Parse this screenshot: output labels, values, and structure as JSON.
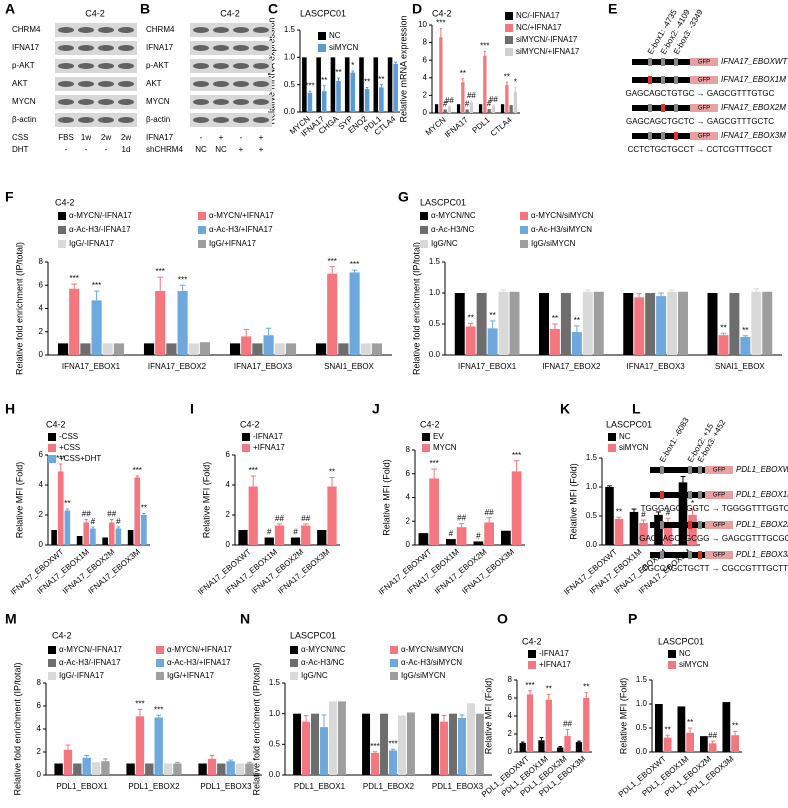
{
  "chart_data": [
    {
      "type": "bar",
      "panel": "C",
      "title": "LASCPC01",
      "ylabel": "Relative mRNA expression",
      "categories": [
        "MYCN",
        "IFNA17",
        "CHGA",
        "SYP",
        "ENO2",
        "PDL1",
        "CTLA4"
      ],
      "series": [
        {
          "name": "NC",
          "color": "#000000",
          "values": [
            1,
            1,
            1,
            1,
            1,
            1,
            1
          ]
        },
        {
          "name": "siMYCN",
          "color": "#5b9bd5",
          "values": [
            0.35,
            0.38,
            0.57,
            0.72,
            0.42,
            0.45,
            0.88
          ],
          "errors": [
            0.03,
            0.1,
            0.05,
            0.03,
            0.03,
            0.05,
            0.03
          ],
          "significance": [
            "***",
            "**",
            "**",
            "*",
            "**",
            "**",
            null
          ]
        }
      ],
      "ylim": [
        0,
        1.5
      ],
      "yticks": [
        {
          "value": 0,
          "label": "0.0"
        },
        0.5,
        {
          "value": 1,
          "label": "1.0"
        },
        1.5
      ]
    },
    {
      "type": "bar",
      "panel": "D",
      "title": "C4-2",
      "ylabel": "Relative mRNA expression",
      "categories": [
        "MYCN",
        "IFNA17",
        "PDL1",
        "CTLA4"
      ],
      "series": [
        {
          "name": "NC/-IFNA17",
          "color": "#000000",
          "values": [
            1,
            1,
            1,
            1
          ]
        },
        {
          "name": "NC/+IFNA17",
          "color": "#f4777f",
          "values": [
            8.6,
            3.5,
            6.5,
            3.2
          ],
          "errors": [
            1.0,
            0.4,
            0.5,
            0.3
          ],
          "significance": [
            "***",
            "**",
            "***",
            "**"
          ]
        },
        {
          "name": "siMYCN/-IFNA17",
          "color": "#6d6d6d",
          "values": [
            0.4,
            0.4,
            0.45,
            0.9
          ],
          "significance": [
            "#",
            "#",
            "#",
            null
          ]
        },
        {
          "name": "siMYCN/+IFNA17",
          "color": "#d0d0d0",
          "values": [
            0.7,
            1.2,
            0.8,
            2.4
          ],
          "errors": [
            0.1,
            0.2,
            0.1,
            0.5
          ],
          "significance": [
            "##",
            "##",
            "##",
            "*"
          ]
        }
      ],
      "ylim": [
        0,
        10
      ],
      "yticks": [
        0,
        2,
        4,
        6,
        8,
        10
      ]
    },
    {
      "type": "bar",
      "panel": "F",
      "title": "C4-2",
      "ylabel": "Relative fold enrichment (IP/total)",
      "categories": [
        "IFNA17_EBOX1",
        "IFNA17_EBOX2",
        "IFNA17_EBOX3",
        "SNAI1_EBOX"
      ],
      "series": [
        {
          "name": "α-MYCN/-IFNA17",
          "color": "#000000",
          "values": [
            1,
            1,
            1,
            1
          ]
        },
        {
          "name": "α-MYCN/+IFNA17",
          "color": "#f4777f",
          "values": [
            5.7,
            5.5,
            1.6,
            7.0
          ],
          "errors": [
            0.4,
            1.2,
            0.6,
            0.6
          ],
          "significance": [
            "***",
            "***",
            null,
            "***"
          ]
        },
        {
          "name": "α-Ac-H3/-IFNA17",
          "color": "#6d6d6d",
          "values": [
            1,
            1,
            1,
            1
          ]
        },
        {
          "name": "α-Ac-H3/+IFNA17",
          "color": "#6fa8dc",
          "values": [
            4.7,
            5.5,
            1.7,
            7.1
          ],
          "errors": [
            0.8,
            0.5,
            0.6,
            0.2
          ],
          "significance": [
            "***",
            "***",
            null,
            "***"
          ]
        },
        {
          "name": "IgG/-IFNA17",
          "color": "#d9d9d9",
          "values": [
            1,
            1,
            1,
            1
          ]
        },
        {
          "name": "IgG/+IFNA17",
          "color": "#9e9e9e",
          "values": [
            1,
            1.1,
            1,
            1
          ]
        }
      ],
      "ylim": [
        0,
        8
      ],
      "yticks": [
        0,
        2,
        4,
        6,
        8
      ]
    },
    {
      "type": "bar",
      "panel": "G",
      "title": "LASCPC01",
      "ylabel": "Relative fold enrichment (IP/total)",
      "categories": [
        "IFNA17_EBOX1",
        "IFNA17_EBOX2",
        "IFNA17_EBOX3",
        "SNAI1_EBOX"
      ],
      "series": [
        {
          "name": "α-MYCN/NC",
          "color": "#000000",
          "values": [
            1,
            1,
            1,
            1
          ]
        },
        {
          "name": "α-MYCN/siMYCN",
          "color": "#f4777f",
          "values": [
            0.46,
            0.42,
            0.93,
            0.32
          ],
          "errors": [
            0.05,
            0.08,
            0.06,
            0.03
          ],
          "significance": [
            "**",
            "**",
            null,
            "**"
          ]
        },
        {
          "name": "α-Ac-H3/NC",
          "color": "#6d6d6d",
          "values": [
            1,
            1,
            1,
            1
          ]
        },
        {
          "name": "α-Ac-H3/siMYCN",
          "color": "#6fa8dc",
          "values": [
            0.43,
            0.37,
            0.95,
            0.29
          ],
          "errors": [
            0.12,
            0.1,
            0.05,
            0.02
          ],
          "significance": [
            "**",
            "**",
            null,
            "**"
          ]
        },
        {
          "name": "IgG/NC",
          "color": "#d9d9d9",
          "values": [
            1.02,
            1.02,
            1.02,
            1.02
          ],
          "errors": [
            0.03,
            0.03,
            0.03,
            0.05
          ]
        },
        {
          "name": "IgG/siMYCN",
          "color": "#9e9e9e",
          "values": [
            1.02,
            1.02,
            1.02,
            1.02
          ]
        }
      ],
      "ylim": [
        0,
        1.5
      ],
      "yticks": [
        {
          "value": 0,
          "label": "0.0"
        },
        0.5,
        {
          "value": 1,
          "label": "1.0"
        },
        1.5
      ]
    },
    {
      "type": "bar",
      "panel": "H",
      "title": "C4-2",
      "ylabel": "Relative MFI (Fold)",
      "categories": [
        "IFNA17_EBOXWT",
        "IFNA17_EBOX1M",
        "IFNA17_EBOX2M",
        "IFNA17_EBOX3M"
      ],
      "series": [
        {
          "name": "-CSS",
          "color": "#000000",
          "values": [
            1,
            0.6,
            0.5,
            1.0
          ]
        },
        {
          "name": "+CSS",
          "color": "#f4777f",
          "values": [
            4.9,
            1.5,
            1.5,
            4.5
          ],
          "errors": [
            0.5,
            0.2,
            0.2,
            0.1
          ],
          "significance": [
            "***",
            "##",
            "##",
            "***"
          ]
        },
        {
          "name": "+CSS+DHT",
          "color": "#6fa8dc",
          "values": [
            2.3,
            1.1,
            1.1,
            2.0
          ],
          "errors": [
            0.1,
            0.1,
            0.1,
            0.1
          ],
          "significance": [
            "**",
            "#",
            "#",
            "**"
          ]
        }
      ],
      "ylim": [
        0,
        6
      ],
      "yticks": [
        0,
        2,
        4,
        6
      ]
    },
    {
      "type": "bar",
      "panel": "I",
      "title": "C4-2",
      "ylabel": "Relative MFI (Fold)",
      "categories": [
        "IFNA17_EBOXWT",
        "IFNA17_EBOX1M",
        "IFNA17_EBOX2M",
        "IFNA17_EBOX3M"
      ],
      "series": [
        {
          "name": "-IFNA17",
          "color": "#000000",
          "values": [
            1,
            0.5,
            0.5,
            1.0
          ],
          "significance": [
            null,
            "#",
            "#",
            null
          ]
        },
        {
          "name": "+IFNA17",
          "color": "#f4777f",
          "values": [
            3.9,
            1.3,
            1.3,
            3.9
          ],
          "errors": [
            0.7,
            0.1,
            0.1,
            0.6
          ],
          "significance": [
            "***",
            "##",
            "##",
            "**"
          ]
        }
      ],
      "ylim": [
        0,
        6
      ],
      "yticks": [
        0,
        2,
        4,
        6
      ]
    },
    {
      "type": "bar",
      "panel": "J",
      "title": "C4-2",
      "ylabel": "Relative MFI (Fold)",
      "categories": [
        "IFNA17_EBOXWT",
        "IFNA17_EBOX1M",
        "IFNA17_EBOX2M",
        "IFNA17_EBOX3M"
      ],
      "series": [
        {
          "name": "EV",
          "color": "#000000",
          "values": [
            1,
            0.5,
            0.3,
            1.2
          ],
          "significance": [
            null,
            "#",
            "#",
            null
          ]
        },
        {
          "name": "MYCN",
          "color": "#f4777f",
          "values": [
            5.6,
            1.5,
            1.9,
            6.2
          ],
          "errors": [
            0.8,
            0.3,
            0.4,
            0.9
          ],
          "significance": [
            "***",
            "##",
            "##",
            "***"
          ]
        }
      ],
      "ylim": [
        0,
        8
      ],
      "yticks": [
        0,
        2,
        4,
        6,
        8
      ]
    },
    {
      "type": "bar",
      "panel": "K",
      "title": "LASCPC01",
      "ylabel": "Relative MFI (Fold)",
      "categories": [
        "IFNA17_EBOXWT",
        "IFNA17_EBOX1M",
        "IFNA17_EBOX2M",
        "IFNA17_EBOX3M"
      ],
      "series": [
        {
          "name": "NC",
          "color": "#000000",
          "values": [
            1.0,
            0.57,
            0.52,
            1.08
          ],
          "errors": [
            0.02,
            0.05,
            0.05,
            0.1
          ]
        },
        {
          "name": "siMYCN",
          "color": "#f4777f",
          "values": [
            0.45,
            0.38,
            0.36,
            0.52
          ],
          "errors": [
            0.03,
            0.05,
            0.1,
            0.1
          ],
          "significance": [
            "**",
            "#",
            "#",
            "*"
          ]
        }
      ],
      "ylim": [
        0,
        1.5
      ],
      "yticks": [
        {
          "value": 0,
          "label": "0.0"
        },
        0.5,
        {
          "value": 1,
          "label": "1.0"
        },
        1.5
      ]
    },
    {
      "type": "bar",
      "panel": "M",
      "title": "C4-2",
      "ylabel": "Relative fold enrichment (IP/total)",
      "categories": [
        "PDL1_EBOX1",
        "PDL1_EBOX2",
        "PDL1_EBOX3"
      ],
      "series": [
        {
          "name": "α-MYCN/-IFNA17",
          "color": "#000000",
          "values": [
            1,
            1,
            1
          ]
        },
        {
          "name": "α-MYCN/+IFNA17",
          "color": "#f4777f",
          "values": [
            2.2,
            5.1,
            1.4
          ],
          "errors": [
            0.4,
            0.6,
            0.3
          ],
          "significance": [
            null,
            "***",
            null
          ]
        },
        {
          "name": "α-Ac-H3/-IFNA17",
          "color": "#6d6d6d",
          "values": [
            1,
            1,
            1
          ]
        },
        {
          "name": "α-Ac-H3/+IFNA17",
          "color": "#6fa8dc",
          "values": [
            1.5,
            5.0,
            1.2
          ],
          "errors": [
            0.2,
            0.2,
            0.1
          ],
          "significance": [
            null,
            "***",
            null
          ]
        },
        {
          "name": "IgG/-IFNA17",
          "color": "#d9d9d9",
          "values": [
            1.1,
            1.0,
            1.0
          ]
        },
        {
          "name": "IgG/+IFNA17",
          "color": "#9e9e9e",
          "values": [
            1.2,
            1.0,
            1.0
          ],
          "errors": [
            0.2,
            0.1,
            0.1
          ]
        }
      ],
      "ylim": [
        0,
        8
      ],
      "yticks": [
        0,
        2,
        4,
        6,
        8
      ]
    },
    {
      "type": "bar",
      "panel": "N",
      "title": "LASCPC01",
      "ylabel": "Relative fold enrichment (IP/total)",
      "categories": [
        "PDL1_EBOX1",
        "PDL1_EBOX2",
        "PDL1_EBOX3"
      ],
      "series": [
        {
          "name": "α-MYCN/NC",
          "color": "#000000",
          "values": [
            1,
            1,
            1
          ]
        },
        {
          "name": "α-MYCN/siMYCN",
          "color": "#f4777f",
          "values": [
            0.87,
            0.36,
            0.87
          ],
          "errors": [
            0.1,
            0.02,
            0.1
          ],
          "significance": [
            null,
            "***",
            null
          ]
        },
        {
          "name": "α-Ac-H3/NC",
          "color": "#6d6d6d",
          "values": [
            1,
            1,
            1
          ]
        },
        {
          "name": "α-Ac-H3/siMYCN",
          "color": "#6fa8dc",
          "values": [
            0.78,
            0.4,
            0.93
          ],
          "errors": [
            0.2,
            0.02,
            0.05
          ],
          "significance": [
            null,
            "***",
            null
          ]
        },
        {
          "name": "IgG/NC",
          "color": "#d9d9d9",
          "values": [
            1.2,
            0.97,
            1.17
          ]
        },
        {
          "name": "IgG/siMYCN",
          "color": "#9e9e9e",
          "values": [
            1.2,
            1.02,
            1.0
          ]
        }
      ],
      "ylim": [
        0,
        1.5
      ],
      "yticks": [
        {
          "value": 0,
          "label": "0.0"
        },
        0.5,
        {
          "value": 1,
          "label": "1.0"
        },
        1.5
      ]
    },
    {
      "type": "bar",
      "panel": "O",
      "title": "C4-2",
      "ylabel": "Relative MFI (Fold)",
      "categories": [
        "PDL1_EBOXWT",
        "PDL1_EBOX1M",
        "PDL1_EBOX2M",
        "PDL1_EBOX3M"
      ],
      "series": [
        {
          "name": "-IFNA17",
          "color": "#000000",
          "values": [
            1,
            1.3,
            0.5,
            1.1
          ],
          "errors": [
            0.1,
            0.3,
            0.1,
            0.1
          ]
        },
        {
          "name": "+IFNA17",
          "color": "#f4777f",
          "values": [
            6.4,
            5.8,
            1.8,
            6.0
          ],
          "errors": [
            0.4,
            0.6,
            0.7,
            0.6
          ],
          "significance": [
            "***",
            "**",
            "##",
            "**"
          ]
        }
      ],
      "ylim": [
        0,
        8
      ],
      "yticks": [
        0,
        2,
        4,
        6,
        8
      ]
    },
    {
      "type": "bar",
      "panel": "P",
      "title": "LASCPC01",
      "ylabel": "Relative MFI (Fold)",
      "categories": [
        "PDL1_EBOXWT",
        "PDL1_EBOX1M",
        "PDL1_EBOX2M",
        "PDL1_EBOX3M"
      ],
      "series": [
        {
          "name": "NC",
          "color": "#000000",
          "values": [
            1.0,
            0.95,
            0.33,
            1.04
          ]
        },
        {
          "name": "siMYCN",
          "color": "#f4777f",
          "values": [
            0.3,
            0.4,
            0.18,
            0.35
          ],
          "errors": [
            0.05,
            0.1,
            0.05,
            0.08
          ],
          "significance": [
            "**",
            "**",
            "##",
            "**"
          ]
        }
      ],
      "ylim": [
        0,
        1.5
      ],
      "yticks": [
        {
          "value": 0,
          "label": "0.0"
        },
        0.5,
        {
          "value": 1,
          "label": "1.0"
        },
        1.5
      ]
    }
  ],
  "blots": [
    {
      "panel": "A",
      "title": "C4-2",
      "rows": [
        "CHRM4",
        "IFNA17",
        "p-AKT",
        "AKT",
        "MYCN",
        "β-actin"
      ],
      "conditions": [
        {
          "label": "CSS",
          "values": [
            "FBS",
            "1w",
            "2w",
            "2w"
          ]
        },
        {
          "label": "DHT",
          "values": [
            "-",
            "-",
            "-",
            "1d"
          ]
        }
      ]
    },
    {
      "panel": "B",
      "title": "C4-2",
      "rows": [
        "CHRM4",
        "IFNA17",
        "p-AKT",
        "AKT",
        "MYCN",
        "β-actin"
      ],
      "conditions": [
        {
          "label": "IFNA17",
          "values": [
            "-",
            "+",
            "-",
            "+"
          ]
        },
        {
          "label": "shCHRM4",
          "values": [
            "NC",
            "NC",
            "+",
            "+"
          ]
        }
      ]
    }
  ],
  "diagrams": [
    {
      "panel": "E",
      "sites": [
        "E-box1: -4735",
        "E-box2: -4109",
        "E-box3: -3349"
      ],
      "gfp": "GFP",
      "constructs": [
        {
          "name": "IFNA17_EBOXWT",
          "mutation": null
        },
        {
          "name": "IFNA17_EBOX1M",
          "mutation": "GAGCAGCTGTGC → GAGCGTTTGTGC"
        },
        {
          "name": "IFNA17_EBOX2M",
          "mutation": "GAGCAGCTGCTC → GAGCGTTTGCTC"
        },
        {
          "name": "IFNA17_EBOX3M",
          "mutation": "CCTCTGCTGCCT → CCTCGTTTGCCT"
        }
      ]
    },
    {
      "panel": "L",
      "sites": [
        "E-box1: -6083",
        "E-box2: +15",
        "E-box3: +452"
      ],
      "gfp": "GFP",
      "constructs": [
        {
          "name": "PDL1_EBOXWT",
          "mutation": null
        },
        {
          "name": "PDL1_EBOX1M",
          "mutation": "TGGGAGCTGGTC → TGGGGTTTGGTC"
        },
        {
          "name": "PDL1_EBOX2M",
          "mutation": "GAGCAGCTGCGG → GAGCGTTTGCGG"
        },
        {
          "name": "PDL1_EBOX3M",
          "mutation": "CGCCAGCTGCTT → CGCCGTTTGCTT"
        }
      ]
    }
  ]
}
